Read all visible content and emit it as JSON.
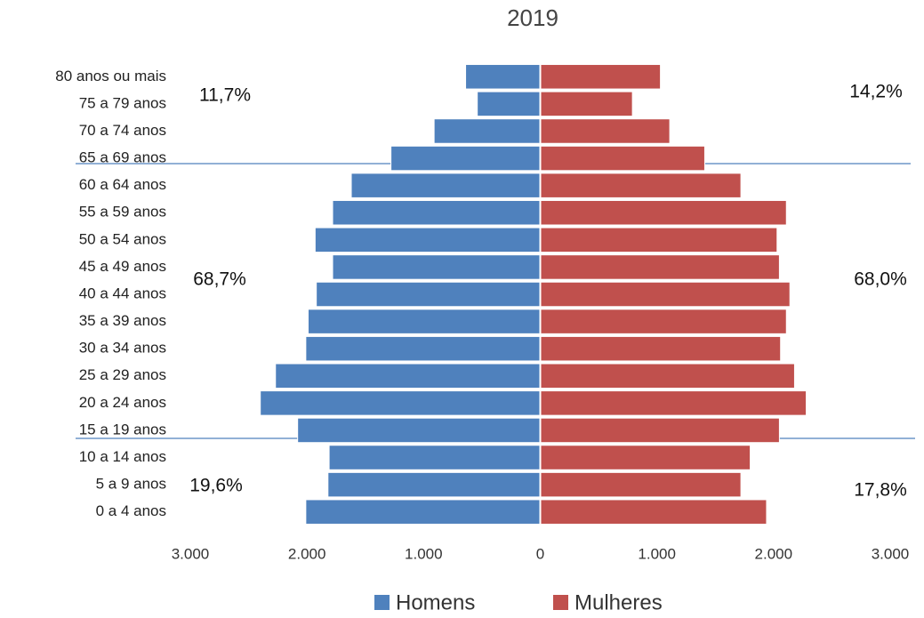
{
  "chart_data": {
    "type": "pyramid",
    "title": "2019",
    "categories": [
      "80 anos ou mais",
      "75 a 79 anos",
      "70 a 74 anos",
      "65 a 69 anos",
      "60 a 64 anos",
      "55 a 59 anos",
      "50 a 54 anos",
      "45 a 49 anos",
      "40 a 44 anos",
      "35 a 39 anos",
      "30 a 34 anos",
      "25 a 29 anos",
      "20 a 24 anos",
      "15 a 19 anos",
      "10 a 14 anos",
      "5 a 9 anos",
      "0 a 4 anos"
    ],
    "series": [
      {
        "name": "Homens",
        "color": "#4f81bd",
        "values": [
          -640,
          -540,
          -910,
          -1280,
          -1620,
          -1780,
          -1930,
          -1780,
          -1920,
          -1990,
          -2010,
          -2270,
          -2400,
          -2080,
          -1810,
          -1820,
          -2010
        ]
      },
      {
        "name": "Mulheres",
        "color": "#c0504d",
        "values": [
          1030,
          790,
          1110,
          1410,
          1720,
          2110,
          2030,
          2050,
          2140,
          2110,
          2060,
          2180,
          2280,
          2050,
          1800,
          1720,
          1940
        ]
      }
    ],
    "xlim": [
      -3000,
      3000
    ],
    "xticks": [
      {
        "value": -3000,
        "label": "3.000"
      },
      {
        "value": -2000,
        "label": "2.000"
      },
      {
        "value": -1000,
        "label": "1.000"
      },
      0,
      {
        "value": 1000,
        "label": "1.000"
      },
      {
        "value": 2000,
        "label": "2.000"
      },
      {
        "value": 3000,
        "label": "3.000"
      }
    ],
    "annotations": [
      "11,7%",
      "68,7%",
      "19,6%",
      "14,2%",
      "68,0%",
      "17,8%"
    ]
  }
}
